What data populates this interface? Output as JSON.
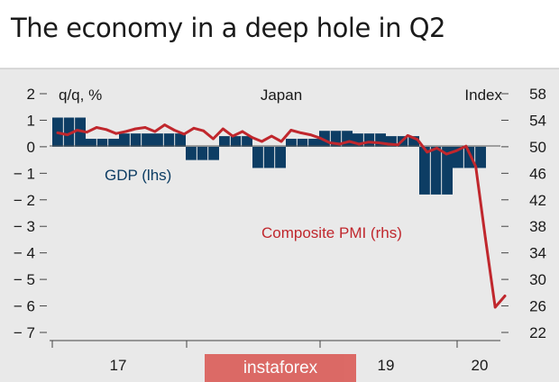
{
  "chart_data": {
    "type": "bar+line",
    "title": "The economy in a deep hole in Q2",
    "subtitle": "Japan",
    "left_axis_label": "q/q, %",
    "right_axis_label": "Index",
    "x_tick_labels": [
      "17",
      "19",
      "20"
    ],
    "left_ylim": [
      -7,
      2
    ],
    "left_ticks": [
      "2",
      "1",
      "0",
      "− 1",
      "− 2",
      "− 3",
      "− 4",
      "− 5",
      "− 6",
      "− 7"
    ],
    "right_ylim": [
      22,
      58
    ],
    "right_ticks": [
      "58",
      "54",
      "50",
      "46",
      "42",
      "38",
      "34",
      "30",
      "26",
      "22"
    ],
    "grid": false,
    "series": [
      {
        "name": "GDP (lhs)",
        "axis": "left",
        "type": "bar",
        "color": "#0d3d64",
        "periods": [
          "2017 Q1",
          "2017 Q2",
          "2017 Q3",
          "2017 Q4",
          "2018 Q1",
          "2018 Q2",
          "2018 Q3",
          "2018 Q4",
          "2019 Q1",
          "2019 Q2",
          "2019 Q3",
          "2019 Q4",
          "2020 Q1"
        ],
        "values": [
          1.1,
          0.3,
          0.5,
          0.5,
          -0.5,
          0.4,
          -0.8,
          0.3,
          0.6,
          0.5,
          0.4,
          -1.8,
          -0.8
        ]
      },
      {
        "name": "Composite PMI (rhs)",
        "axis": "right",
        "type": "line",
        "color": "#c0272d",
        "values": [
          52.1,
          51.8,
          52.5,
          52.2,
          52.9,
          52.6,
          52.0,
          52.3,
          52.7,
          52.9,
          52.3,
          53.3,
          52.5,
          51.9,
          52.8,
          52.4,
          51.2,
          52.7,
          51.6,
          52.3,
          51.4,
          50.8,
          51.6,
          50.8,
          52.5,
          52.1,
          51.8,
          51.3,
          50.6,
          50.4,
          50.8,
          50.4,
          50.7,
          50.6,
          50.4,
          50.3,
          51.7,
          51.1,
          49.2,
          49.8,
          48.9,
          49.4,
          50.1,
          47.0,
          36.2,
          25.8,
          27.5
        ]
      }
    ]
  },
  "watermark": "instaforex"
}
